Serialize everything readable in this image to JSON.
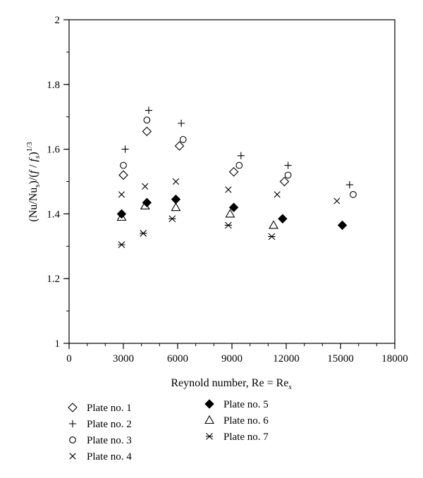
{
  "chart_data": {
    "type": "scatter",
    "title": "",
    "xlabel": "Reynold number, Re = Re",
    "xlabel_sub": "s",
    "ylabel": {
      "open": "(Nu/Nu",
      "sub1": "s",
      "mid": ")/(",
      "f1": "f",
      "slash": " / ",
      "f2": "f",
      "sub2": "s",
      "close": ")",
      "exp": "1/3"
    },
    "xlim": [
      0,
      18000
    ],
    "ylim": [
      1,
      2
    ],
    "xticks": [
      0,
      3000,
      6000,
      9000,
      12000,
      15000,
      18000
    ],
    "xtick_labels": [
      "0",
      "3000",
      "6000",
      "9000",
      "12000",
      "15000",
      "18000"
    ],
    "yticks": [
      1,
      1.2,
      1.4,
      1.6,
      1.8,
      2
    ],
    "ytick_labels": [
      "1",
      "1.2",
      "1.4",
      "1.6",
      "1.8",
      "2"
    ],
    "x_minor_step": 1000,
    "y_minor_step": 0.1,
    "grid": false,
    "legend_position": "bottom",
    "series": [
      {
        "name": "Plate no. 1",
        "marker": "diamond-open",
        "x": [
          3000,
          4300,
          6100,
          9100,
          11900
        ],
        "y": [
          1.52,
          1.655,
          1.61,
          1.53,
          1.5
        ]
      },
      {
        "name": "Plate no. 2",
        "marker": "plus",
        "x": [
          3100,
          4400,
          6200,
          9500,
          12100,
          15500
        ],
        "y": [
          1.6,
          1.72,
          1.68,
          1.58,
          1.55,
          1.49
        ]
      },
      {
        "name": "Plate no. 3",
        "marker": "circle-open",
        "x": [
          3000,
          4300,
          6300,
          9400,
          12100,
          15700
        ],
        "y": [
          1.55,
          1.69,
          1.63,
          1.55,
          1.52,
          1.46
        ]
      },
      {
        "name": "Plate no. 4",
        "marker": "x",
        "x": [
          2900,
          4200,
          5900,
          8800,
          11500,
          14800
        ],
        "y": [
          1.46,
          1.485,
          1.5,
          1.475,
          1.46,
          1.44
        ]
      },
      {
        "name": "Plate no. 5",
        "marker": "diamond-filled",
        "x": [
          2900,
          4300,
          5900,
          9100,
          11800,
          15100
        ],
        "y": [
          1.4,
          1.435,
          1.445,
          1.42,
          1.385,
          1.365
        ]
      },
      {
        "name": "Plate no. 6",
        "marker": "triangle-open",
        "x": [
          2900,
          4200,
          5900,
          8900,
          11300
        ],
        "y": [
          1.39,
          1.425,
          1.42,
          1.4,
          1.365
        ]
      },
      {
        "name": "Plate no. 7",
        "marker": "asterisk",
        "x": [
          2900,
          4100,
          5700,
          8800,
          11200
        ],
        "y": [
          1.305,
          1.34,
          1.385,
          1.365,
          1.33
        ]
      }
    ]
  }
}
